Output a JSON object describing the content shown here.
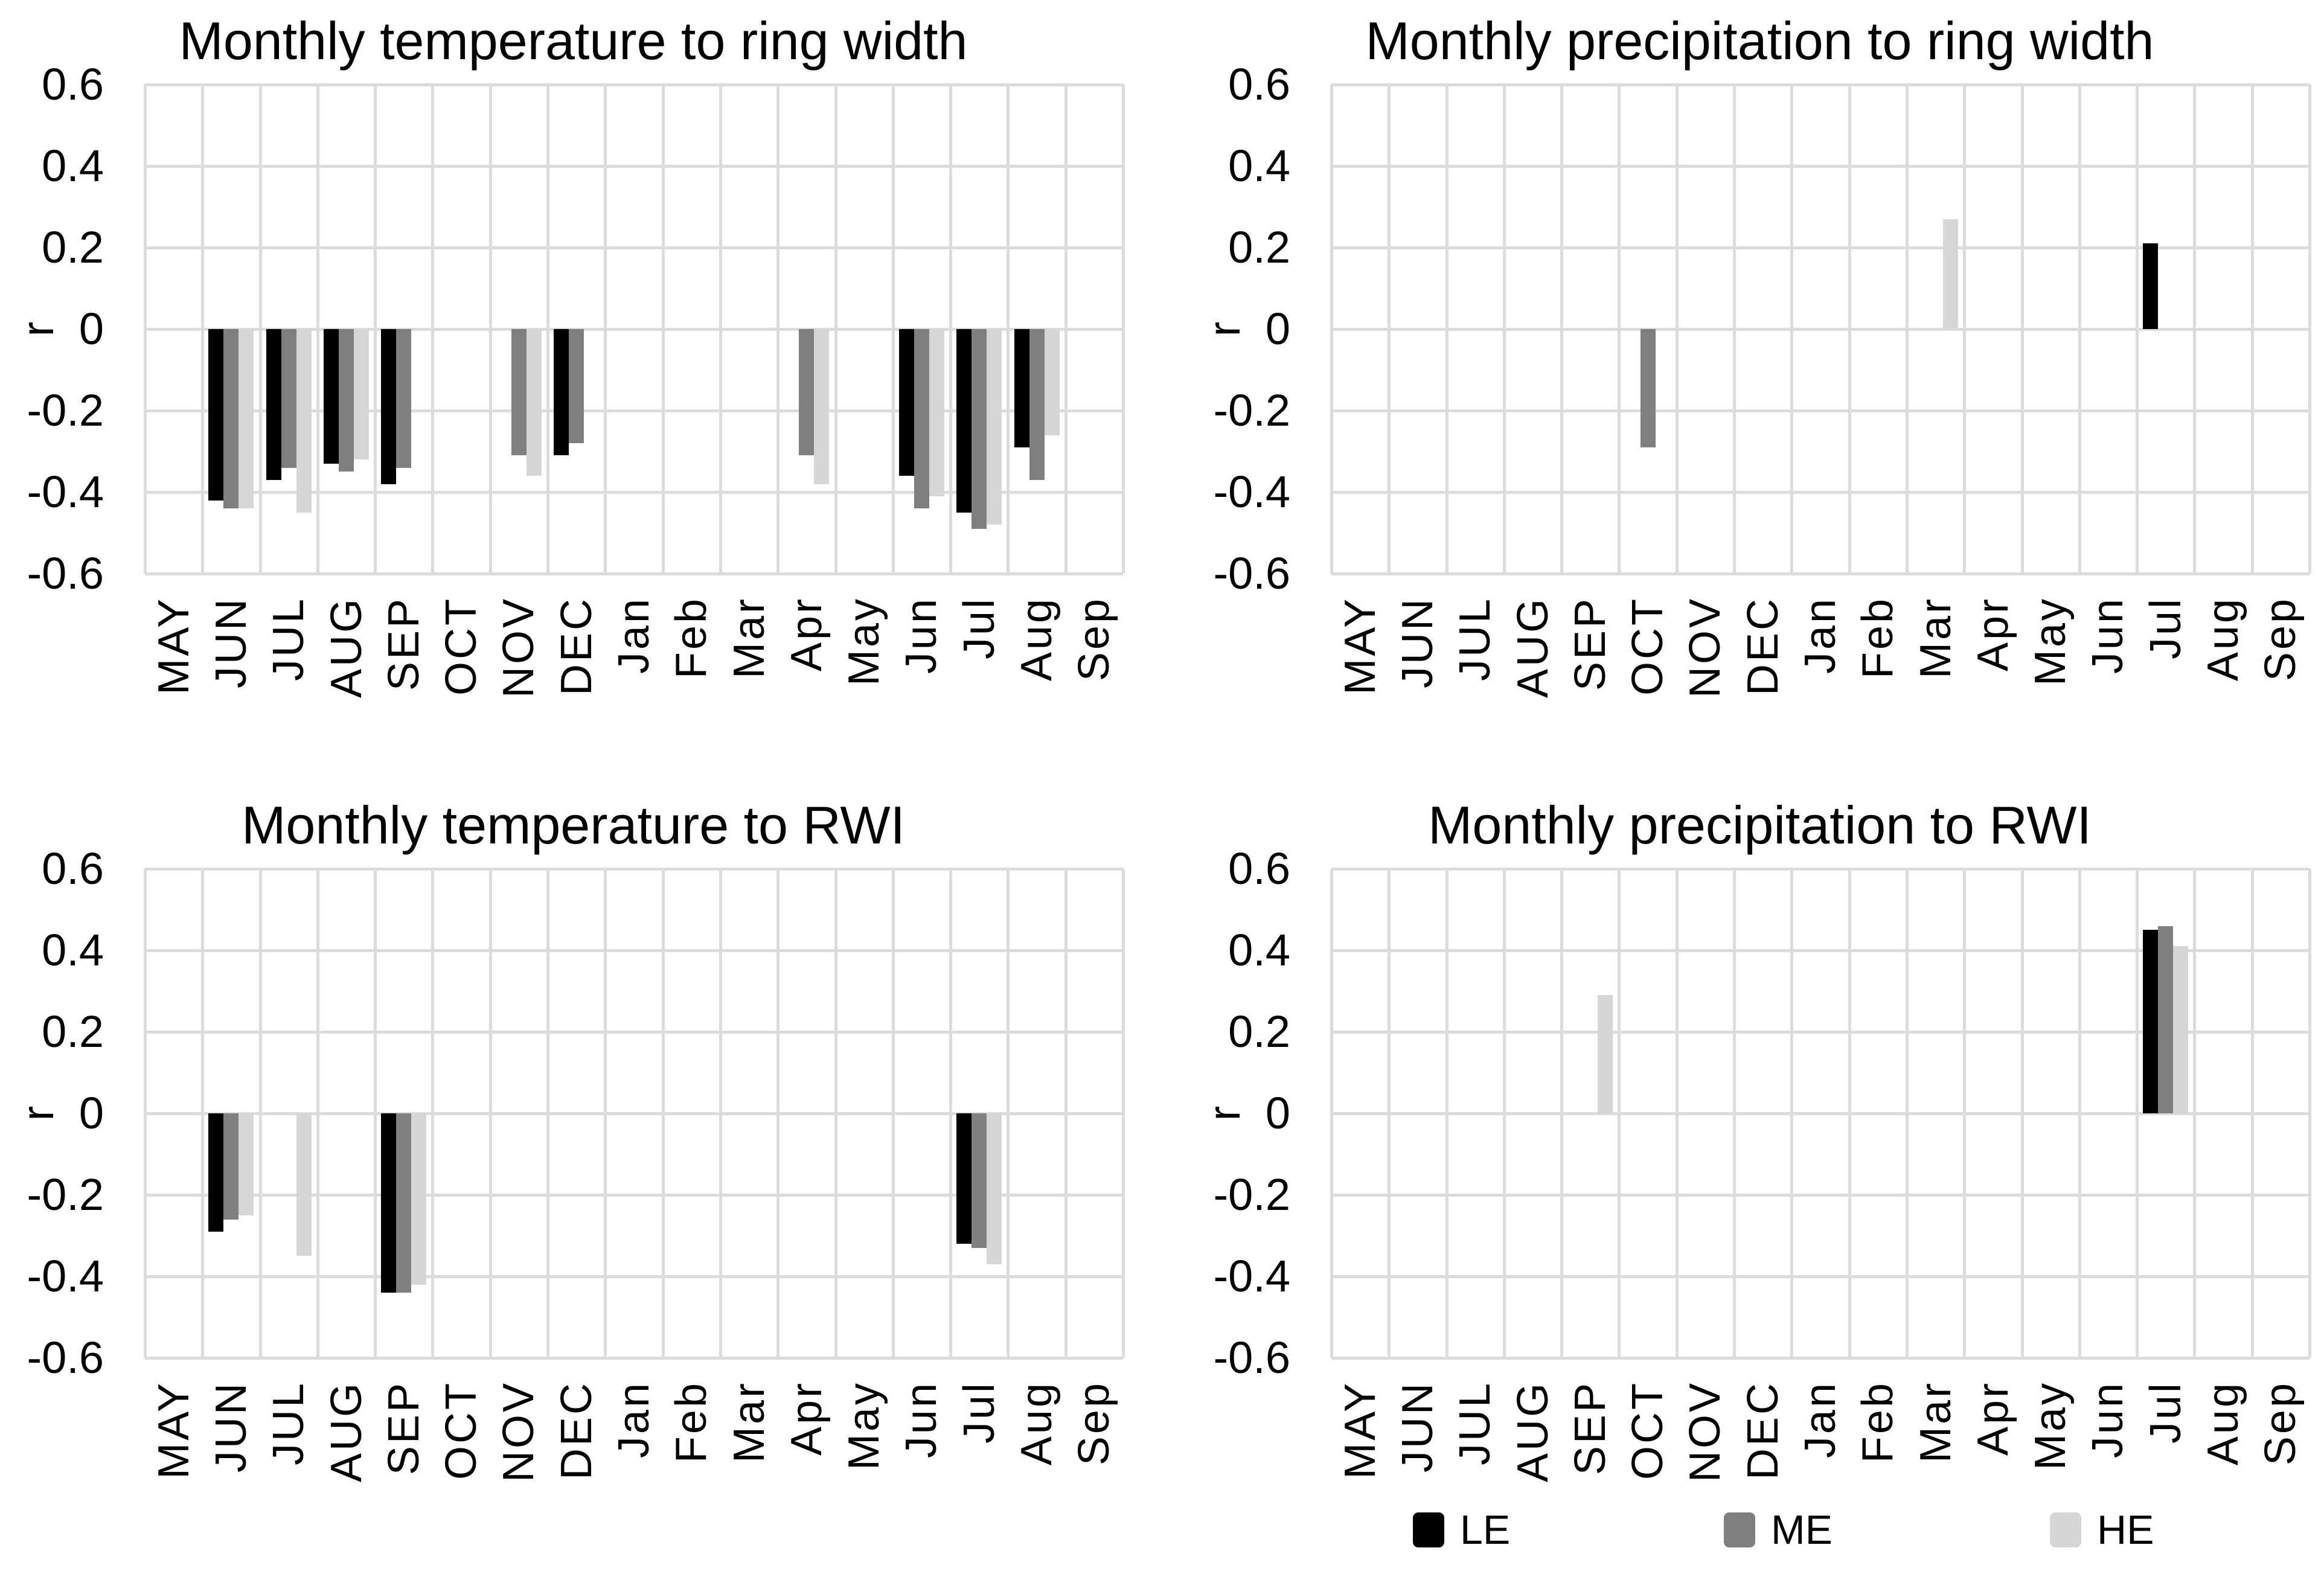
{
  "figure": {
    "background": "#ffffff",
    "text_color": "#000000",
    "gridline_color": "#dcdcdc"
  },
  "colors": {
    "LE": "#000000",
    "ME": "#7f7f7f",
    "HE": "#d6d6d6"
  },
  "axis": {
    "ylabel": "r",
    "ylim": [
      -0.6,
      0.6
    ],
    "ytick_labels": [
      "0.6",
      "0.4",
      "0.2",
      "0",
      "-0.2",
      "-0.4",
      "-0.6"
    ],
    "yticks": [
      0.6,
      0.4,
      0.2,
      0,
      -0.2,
      -0.4,
      -0.6
    ],
    "categories": [
      "MAY",
      "JUN",
      "JUL",
      "AUG",
      "SEP",
      "OCT",
      "NOV",
      "DEC",
      "Jan",
      "Feb",
      "Mar",
      "Apr",
      "May",
      "Jun",
      "Jul",
      "Aug",
      "Sep"
    ],
    "grid": "on",
    "legend_position": "bottom"
  },
  "legend": {
    "items": [
      {
        "label": "LE",
        "color": "#000000"
      },
      {
        "label": "ME",
        "color": "#7f7f7f"
      },
      {
        "label": "HE",
        "color": "#d6d6d6"
      }
    ]
  },
  "chart_data": [
    {
      "type": "bar",
      "title": "Monthly temperature to ring width",
      "xlabel": "",
      "ylabel": "r",
      "ylim": [
        -0.6,
        0.6
      ],
      "categories": [
        "MAY",
        "JUN",
        "JUL",
        "AUG",
        "SEP",
        "OCT",
        "NOV",
        "DEC",
        "Jan",
        "Feb",
        "Mar",
        "Apr",
        "May",
        "Jun",
        "Jul",
        "Aug",
        "Sep"
      ],
      "series": [
        {
          "name": "LE",
          "values": [
            null,
            -0.42,
            -0.37,
            -0.33,
            -0.38,
            null,
            null,
            -0.31,
            null,
            null,
            null,
            null,
            null,
            -0.36,
            -0.45,
            -0.29,
            null
          ]
        },
        {
          "name": "ME",
          "values": [
            null,
            -0.44,
            -0.34,
            -0.35,
            -0.34,
            null,
            -0.31,
            -0.28,
            null,
            null,
            null,
            -0.31,
            null,
            -0.44,
            -0.49,
            -0.37,
            null
          ]
        },
        {
          "name": "HE",
          "values": [
            null,
            -0.44,
            -0.45,
            -0.32,
            null,
            null,
            -0.36,
            null,
            null,
            null,
            null,
            -0.38,
            null,
            -0.41,
            -0.48,
            -0.26,
            null
          ]
        }
      ]
    },
    {
      "type": "bar",
      "title": "Monthly precipitation to ring width",
      "xlabel": "",
      "ylabel": "r",
      "ylim": [
        -0.6,
        0.6
      ],
      "categories": [
        "MAY",
        "JUN",
        "JUL",
        "AUG",
        "SEP",
        "OCT",
        "NOV",
        "DEC",
        "Jan",
        "Feb",
        "Mar",
        "Apr",
        "May",
        "Jun",
        "Jul",
        "Aug",
        "Sep"
      ],
      "series": [
        {
          "name": "LE",
          "values": [
            null,
            null,
            null,
            null,
            null,
            null,
            null,
            null,
            null,
            null,
            null,
            null,
            null,
            null,
            0.21,
            null,
            null
          ]
        },
        {
          "name": "ME",
          "values": [
            null,
            null,
            null,
            null,
            null,
            -0.29,
            null,
            null,
            null,
            null,
            null,
            null,
            null,
            null,
            null,
            null,
            null
          ]
        },
        {
          "name": "HE",
          "values": [
            null,
            null,
            null,
            null,
            null,
            null,
            null,
            null,
            null,
            null,
            0.27,
            null,
            null,
            null,
            null,
            null,
            null
          ]
        }
      ]
    },
    {
      "type": "bar",
      "title": "Monthly temperature to RWI",
      "xlabel": "",
      "ylabel": "r",
      "ylim": [
        -0.6,
        0.6
      ],
      "categories": [
        "MAY",
        "JUN",
        "JUL",
        "AUG",
        "SEP",
        "OCT",
        "NOV",
        "DEC",
        "Jan",
        "Feb",
        "Mar",
        "Apr",
        "May",
        "Jun",
        "Jul",
        "Aug",
        "Sep"
      ],
      "series": [
        {
          "name": "LE",
          "values": [
            null,
            -0.29,
            null,
            null,
            -0.44,
            null,
            null,
            null,
            null,
            null,
            null,
            null,
            null,
            null,
            -0.32,
            null,
            null
          ]
        },
        {
          "name": "ME",
          "values": [
            null,
            -0.26,
            null,
            null,
            -0.44,
            null,
            null,
            null,
            null,
            null,
            null,
            null,
            null,
            null,
            -0.33,
            null,
            null
          ]
        },
        {
          "name": "HE",
          "values": [
            null,
            -0.25,
            -0.35,
            null,
            -0.42,
            null,
            null,
            null,
            null,
            null,
            null,
            null,
            null,
            null,
            -0.37,
            null,
            null
          ]
        }
      ]
    },
    {
      "type": "bar",
      "title": "Monthly precipitation to RWI",
      "xlabel": "",
      "ylabel": "r",
      "ylim": [
        -0.6,
        0.6
      ],
      "categories": [
        "MAY",
        "JUN",
        "JUL",
        "AUG",
        "SEP",
        "OCT",
        "NOV",
        "DEC",
        "Jan",
        "Feb",
        "Mar",
        "Apr",
        "May",
        "Jun",
        "Jul",
        "Aug",
        "Sep"
      ],
      "series": [
        {
          "name": "LE",
          "values": [
            null,
            null,
            null,
            null,
            null,
            null,
            null,
            null,
            null,
            null,
            null,
            null,
            null,
            null,
            0.45,
            null,
            null
          ]
        },
        {
          "name": "ME",
          "values": [
            null,
            null,
            null,
            null,
            null,
            null,
            null,
            null,
            null,
            null,
            null,
            null,
            null,
            null,
            0.46,
            null,
            null
          ]
        },
        {
          "name": "HE",
          "values": [
            null,
            null,
            null,
            null,
            0.29,
            null,
            null,
            null,
            null,
            null,
            null,
            null,
            null,
            null,
            0.41,
            null,
            null
          ]
        }
      ]
    }
  ]
}
